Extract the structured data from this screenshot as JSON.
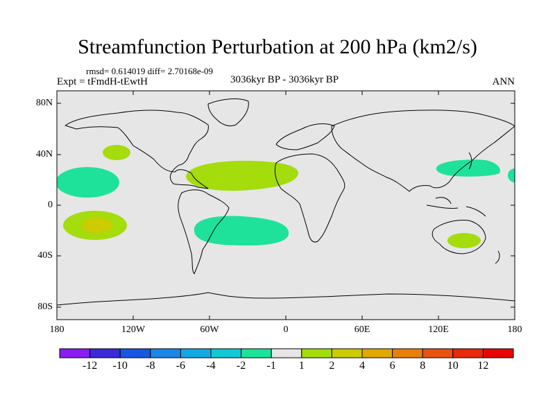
{
  "title": "Streamfunction Perturbation at 200 hPa (km2/s)",
  "stats": "rmsd= 0.614019 diff= 2.70168e-09",
  "experiment": "Expt = tFmdH-tEwtH",
  "period": "3036kyr BP - 3036kyr BP",
  "season": "ANN",
  "map": {
    "projection": "cylindrical equidistant",
    "lon_range": [
      -180,
      180
    ],
    "lat_range": [
      -90,
      90
    ],
    "background_color": "#e6e6e6",
    "coastline_color": "#000000",
    "lat_ticks": [
      {
        "value": 80,
        "label": "80N"
      },
      {
        "value": 40,
        "label": "40N"
      },
      {
        "value": 0,
        "label": "0"
      },
      {
        "value": -40,
        "label": "40S"
      },
      {
        "value": -80,
        "label": "80S"
      }
    ],
    "lon_ticks": [
      {
        "value": -180,
        "label": "180"
      },
      {
        "value": -120,
        "label": "120W"
      },
      {
        "value": -60,
        "label": "60W"
      },
      {
        "value": 0,
        "label": "0"
      },
      {
        "value": 60,
        "label": "60E"
      },
      {
        "value": 120,
        "label": "120E"
      },
      {
        "value": 180,
        "label": "180"
      }
    ]
  },
  "chart_data": {
    "type": "heatmap",
    "title": "Streamfunction Perturbation at 200 hPa (km2/s)",
    "variable": "streamfunction perturbation",
    "units": "km2/s",
    "level": "200 hPa",
    "contour_levels": [
      -12,
      -10,
      -8,
      -6,
      -4,
      -2,
      -1,
      1,
      2,
      4,
      6,
      8,
      10,
      12
    ],
    "colorbar_labels": [
      "-12",
      "-10",
      "-8",
      "-6",
      "-4",
      "-2",
      "-1",
      "1",
      "2",
      "4",
      "6",
      "8",
      "10",
      "12"
    ],
    "colors": [
      "#8a1cf0",
      "#3a2ad8",
      "#1858e0",
      "#1a86e8",
      "#14a8e2",
      "#12c8d4",
      "#1ee29a",
      "#e6e6e6",
      "#a4dc0c",
      "#cccc00",
      "#e0a800",
      "#e88008",
      "#e65410",
      "#e62a0a",
      "#e60606"
    ],
    "anomalies": [
      {
        "name": "N. Pacific west of California",
        "lon": -145,
        "lat": 42,
        "value_band": "1 to 2"
      },
      {
        "name": "Subtropical N. Pacific",
        "lon": -163,
        "lat": 18,
        "value_band": "-2 to -1"
      },
      {
        "name": "S. Pacific",
        "lon": -150,
        "lat": -16,
        "value_band": "1 to 2",
        "core_value_band": "2 to 4"
      },
      {
        "name": "Tropical N. Atlantic",
        "lon": -42,
        "lat": 24,
        "value_band": "1 to 2"
      },
      {
        "name": "S. Atlantic",
        "lon": -43,
        "lat": -21,
        "value_band": "-2 to -1"
      },
      {
        "name": "NW Pacific east of Japan",
        "lon": 150,
        "lat": 34,
        "value_band": "-2 to -1"
      },
      {
        "name": "Eastern Australia",
        "lon": 146,
        "lat": -29,
        "value_band": "1 to 2"
      },
      {
        "name": "Date line fragment",
        "lon": 180,
        "lat": 25,
        "value_band": "-2 to -1"
      }
    ]
  }
}
